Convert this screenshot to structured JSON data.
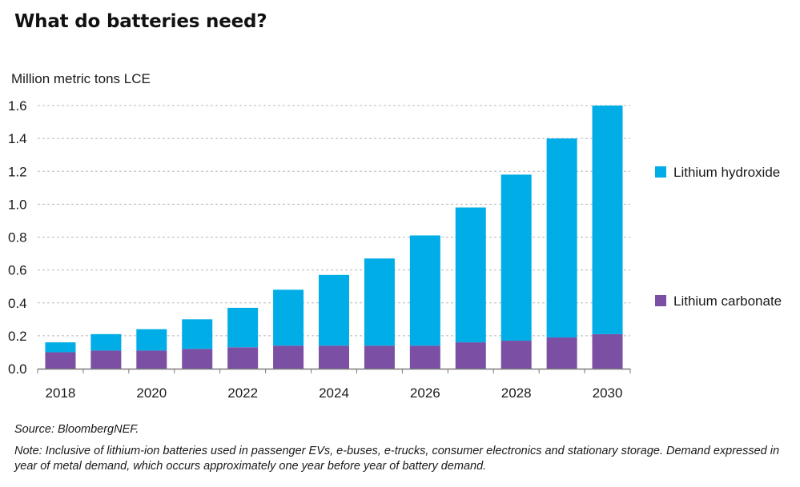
{
  "title": "What do batteries need?",
  "footer": {
    "source": "Source: BloombergNEF.",
    "note": "Note: Inclusive of lithium-ion batteries used in passenger EVs, e-buses, e-trucks, consumer electronics and stationary storage. Demand expressed in year of metal demand, which occurs approximately one year before year of battery demand."
  },
  "colors": {
    "lithium_hydroxide": "#00ade6",
    "lithium_carbonate": "#7b4fa3",
    "grid": "#b8b8b8",
    "axis": "#7a7a7a"
  },
  "chart_data": {
    "type": "bar",
    "stacked": true,
    "title": "What do batteries need?",
    "ylabel": "Million metric tons LCE",
    "xlabel": "",
    "ylim": [
      0,
      1.6
    ],
    "yticks": [
      "0.0",
      "0.2",
      "0.4",
      "0.6",
      "0.8",
      "1.0",
      "1.2",
      "1.4",
      "1.6"
    ],
    "grid": true,
    "legend_position": "right",
    "categories": [
      "2018",
      "2019",
      "2020",
      "2021",
      "2022",
      "2023",
      "2024",
      "2025",
      "2026",
      "2027",
      "2028",
      "2029",
      "2030"
    ],
    "xtick_labels": [
      "2018",
      "",
      "2020",
      "",
      "2022",
      "",
      "2024",
      "",
      "2026",
      "",
      "2028",
      "",
      "2030"
    ],
    "series": [
      {
        "name": "Lithium carbonate",
        "values": [
          0.1,
          0.11,
          0.11,
          0.12,
          0.13,
          0.14,
          0.14,
          0.14,
          0.14,
          0.16,
          0.17,
          0.19,
          0.21
        ]
      },
      {
        "name": "Lithium hydroxide",
        "values": [
          0.06,
          0.1,
          0.13,
          0.18,
          0.24,
          0.34,
          0.43,
          0.53,
          0.67,
          0.82,
          1.01,
          1.21,
          1.39
        ]
      }
    ],
    "legend": [
      "Lithium hydroxide",
      "Lithium carbonate"
    ]
  }
}
